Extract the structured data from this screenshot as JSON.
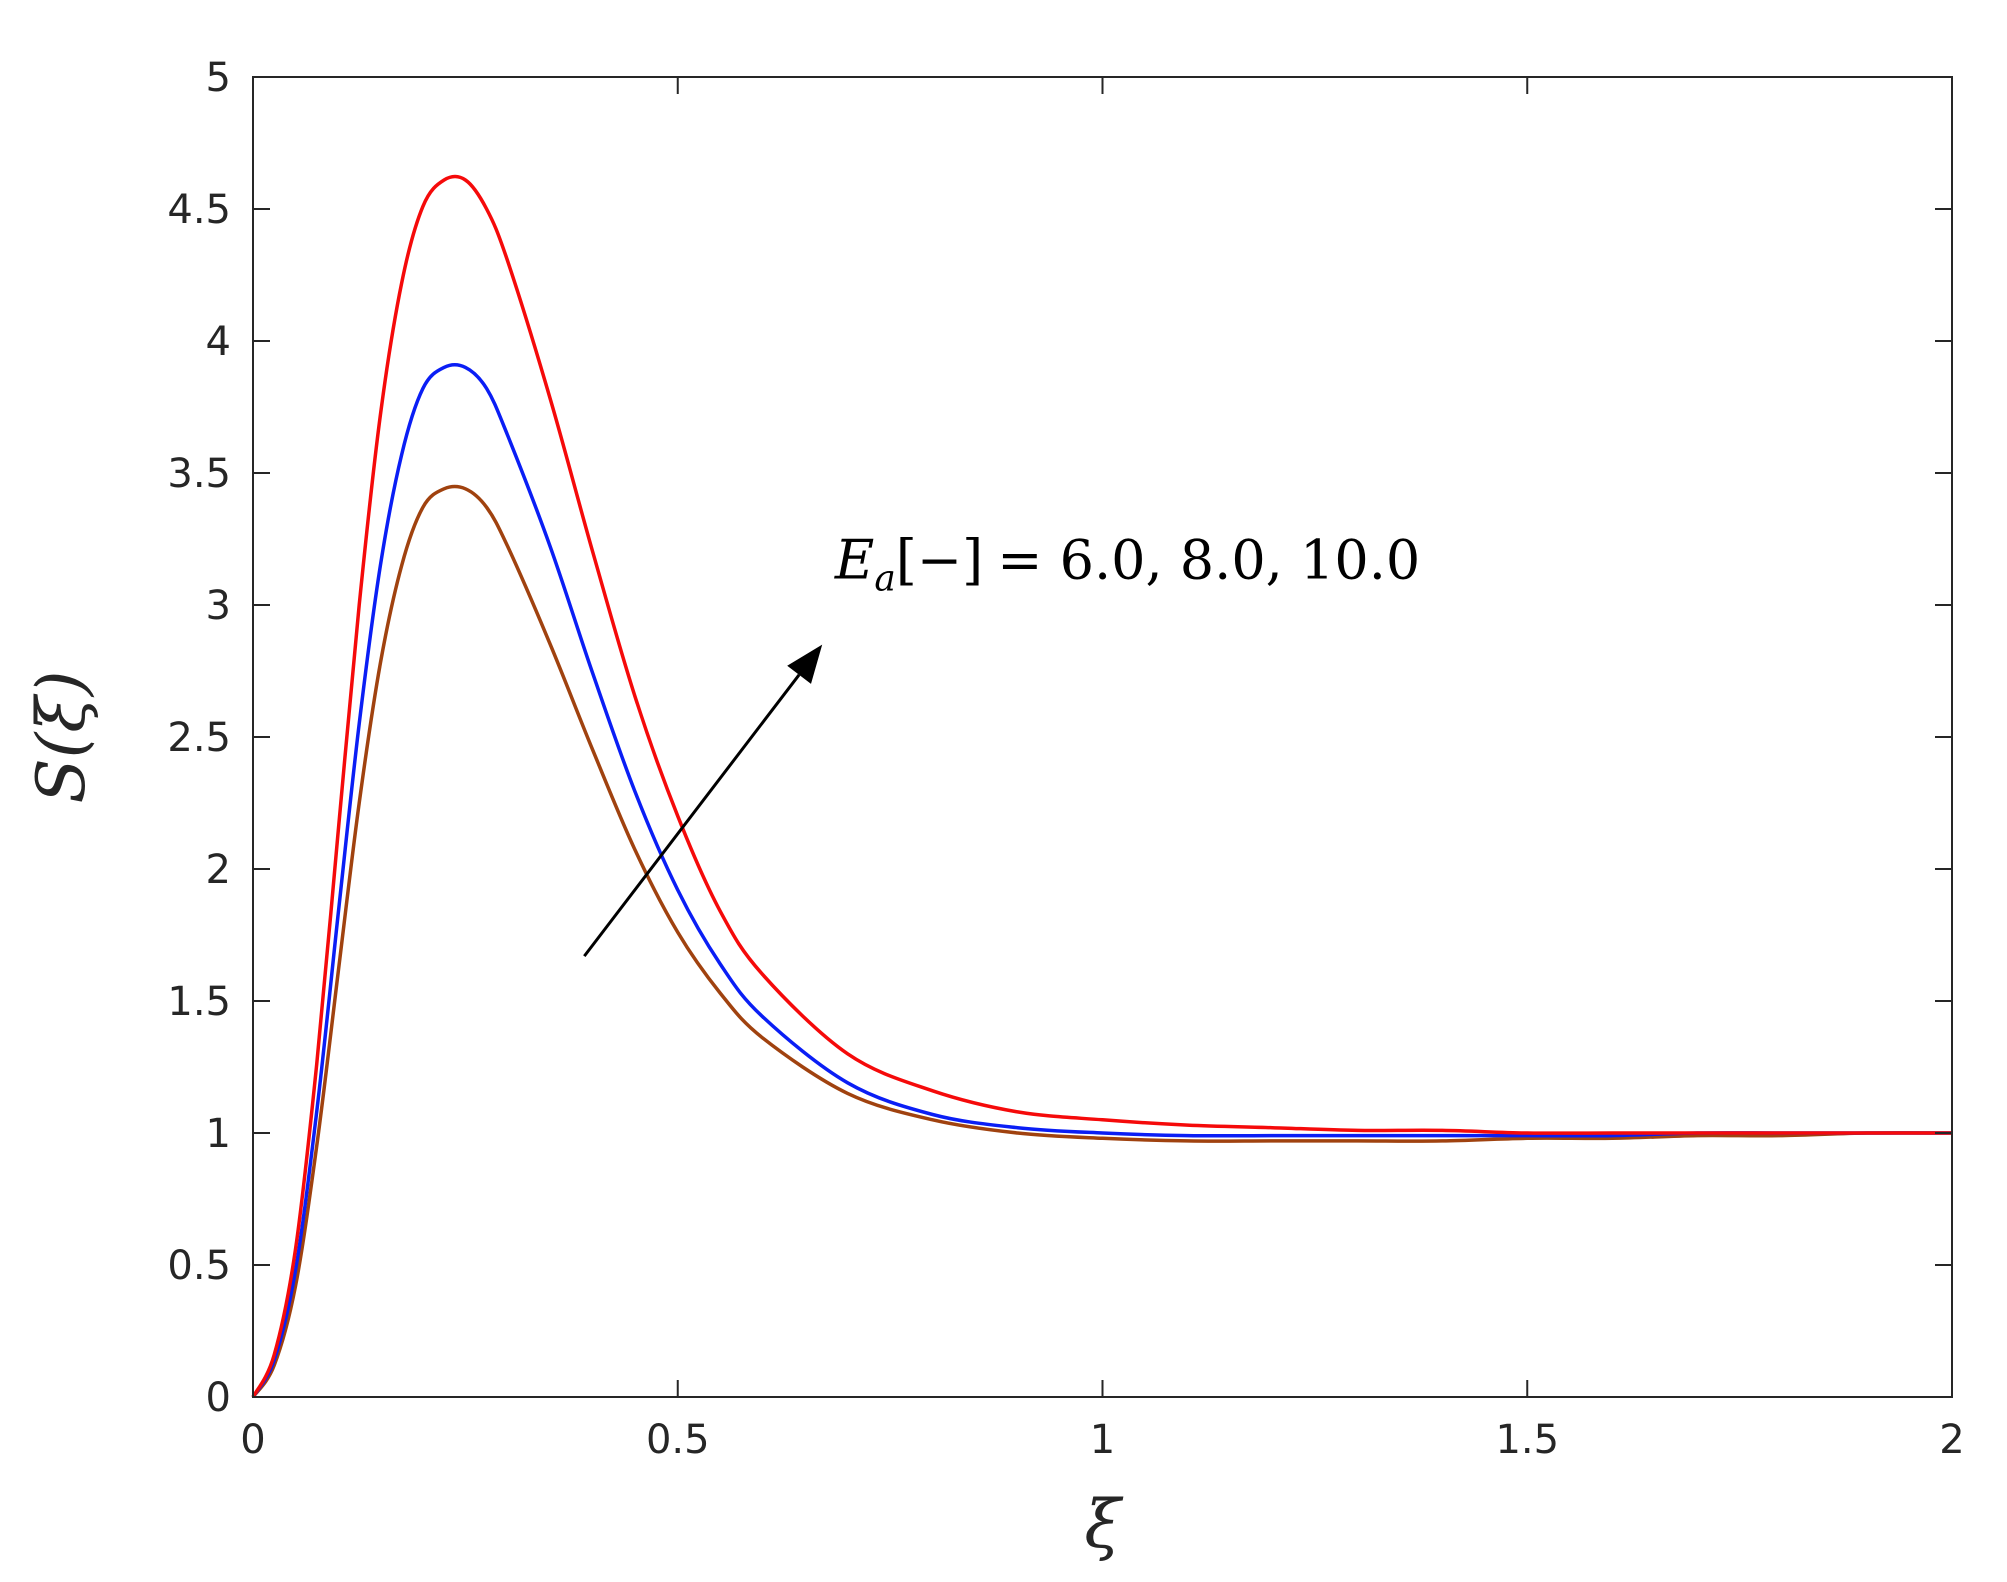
{
  "chart_data": {
    "type": "line",
    "xlabel": "ξ",
    "ylabel": "S(ξ)",
    "xlim": [
      0,
      2
    ],
    "ylim": [
      0,
      5
    ],
    "grid": false,
    "x_ticks": [
      "0",
      "0.5",
      "1",
      "1.5",
      "2"
    ],
    "y_ticks": [
      "0",
      "0.5",
      "1",
      "1.5",
      "2",
      "2.5",
      "3",
      "3.5",
      "4",
      "4.5",
      "5"
    ],
    "annotation": {
      "symbol": "E",
      "subscript": "a",
      "bracket": "[−]",
      "values_text": "= 6.0, 8.0, 10.0",
      "arrow_from": [
        0.39,
        1.67
      ],
      "arrow_to": [
        0.67,
        2.85
      ]
    },
    "series": [
      {
        "color": "#a0420f",
        "x": [
          0,
          0.025,
          0.05,
          0.075,
          0.1,
          0.125,
          0.15,
          0.175,
          0.2,
          0.225,
          0.25,
          0.275,
          0.3,
          0.35,
          0.4,
          0.45,
          0.5,
          0.55,
          0.6,
          0.7,
          0.8,
          0.9,
          1.0,
          1.1,
          1.2,
          1.3,
          1.4,
          1.5,
          1.6,
          1.7,
          1.8,
          1.9,
          2.0
        ],
        "y": [
          0,
          0.12,
          0.42,
          0.95,
          1.6,
          2.25,
          2.78,
          3.15,
          3.37,
          3.44,
          3.44,
          3.37,
          3.22,
          2.85,
          2.45,
          2.07,
          1.76,
          1.53,
          1.36,
          1.15,
          1.05,
          1.0,
          0.98,
          0.97,
          0.97,
          0.97,
          0.97,
          0.98,
          0.98,
          0.99,
          0.99,
          1.0,
          1.0
        ]
      },
      {
        "color": "#0a1ef5",
        "x": [
          0,
          0.025,
          0.05,
          0.075,
          0.1,
          0.125,
          0.15,
          0.175,
          0.2,
          0.225,
          0.25,
          0.275,
          0.3,
          0.35,
          0.4,
          0.45,
          0.5,
          0.55,
          0.6,
          0.7,
          0.8,
          0.9,
          1.0,
          1.1,
          1.2,
          1.3,
          1.4,
          1.5,
          1.6,
          1.7,
          1.8,
          1.9,
          2.0
        ],
        "y": [
          0,
          0.14,
          0.48,
          1.08,
          1.82,
          2.55,
          3.15,
          3.57,
          3.82,
          3.9,
          3.9,
          3.82,
          3.64,
          3.22,
          2.74,
          2.29,
          1.92,
          1.64,
          1.44,
          1.19,
          1.07,
          1.02,
          1.0,
          0.99,
          0.99,
          0.99,
          0.99,
          0.99,
          0.99,
          1.0,
          1.0,
          1.0,
          1.0
        ]
      },
      {
        "color": "#f50a0a",
        "x": [
          0,
          0.025,
          0.05,
          0.075,
          0.1,
          0.125,
          0.15,
          0.175,
          0.2,
          0.225,
          0.25,
          0.275,
          0.3,
          0.35,
          0.4,
          0.45,
          0.5,
          0.55,
          0.6,
          0.7,
          0.8,
          0.9,
          1.0,
          1.1,
          1.2,
          1.3,
          1.4,
          1.5,
          1.6,
          1.7,
          1.8,
          1.9,
          2.0
        ],
        "y": [
          0,
          0.16,
          0.56,
          1.26,
          2.13,
          3.0,
          3.72,
          4.22,
          4.51,
          4.61,
          4.61,
          4.5,
          4.3,
          3.78,
          3.2,
          2.65,
          2.2,
          1.84,
          1.6,
          1.3,
          1.16,
          1.08,
          1.05,
          1.03,
          1.02,
          1.01,
          1.01,
          1.0,
          1.0,
          1.0,
          1.0,
          1.0,
          1.0
        ]
      }
    ]
  }
}
